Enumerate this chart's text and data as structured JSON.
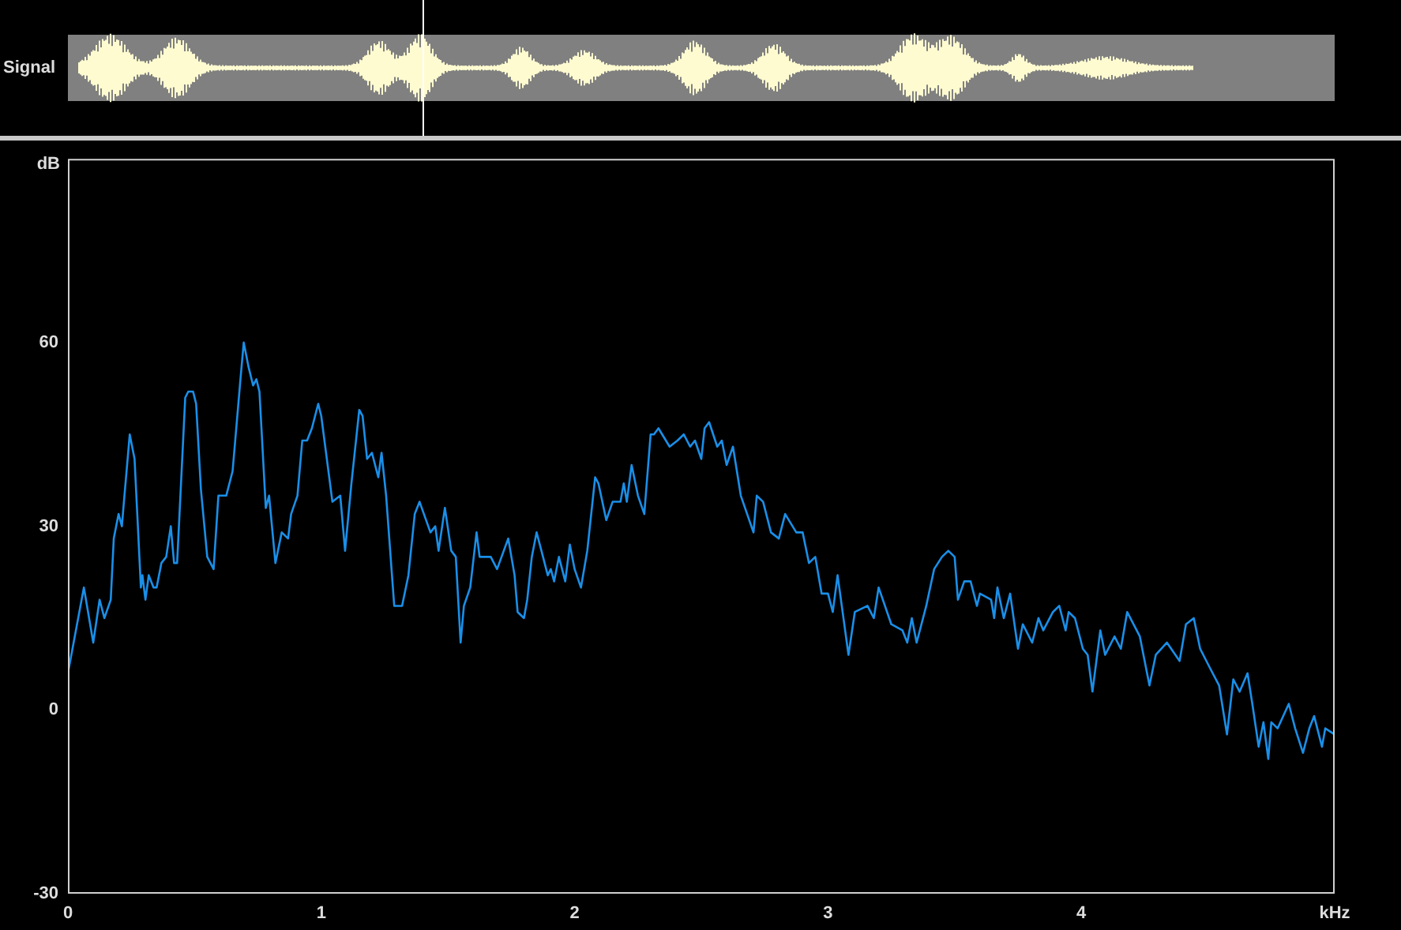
{
  "chart_data": {
    "type": "line",
    "xlabel": "kHz",
    "ylabel": "dB",
    "annotations": [
      "Signal"
    ],
    "xlim": [
      0,
      5
    ],
    "xticks": [
      0,
      1,
      2,
      3,
      4
    ],
    "ylim": [
      -30,
      90
    ],
    "yticks": [
      -30,
      0,
      30,
      60
    ],
    "grid": false,
    "legend": false,
    "marker": "none",
    "line_style": "solid",
    "series": [
      {
        "color": "#1a8fe8",
        "x": [
          0,
          0.063,
          0.1,
          0.125,
          0.144,
          0.169,
          0.181,
          0.2,
          0.213,
          0.219,
          0.244,
          0.263,
          0.288,
          0.294,
          0.306,
          0.319,
          0.338,
          0.35,
          0.369,
          0.388,
          0.406,
          0.419,
          0.431,
          0.463,
          0.475,
          0.494,
          0.506,
          0.525,
          0.55,
          0.575,
          0.594,
          0.625,
          0.65,
          0.681,
          0.694,
          0.713,
          0.731,
          0.744,
          0.756,
          0.781,
          0.794,
          0.819,
          0.844,
          0.869,
          0.881,
          0.906,
          0.925,
          0.944,
          0.963,
          0.988,
          1.0,
          1.044,
          1.075,
          1.094,
          1.119,
          1.15,
          1.163,
          1.181,
          1.2,
          1.225,
          1.238,
          1.256,
          1.288,
          1.319,
          1.344,
          1.369,
          1.388,
          1.431,
          1.45,
          1.463,
          1.488,
          1.513,
          1.531,
          1.55,
          1.563,
          1.588,
          1.613,
          1.625,
          1.669,
          1.694,
          1.738,
          1.763,
          1.775,
          1.8,
          1.813,
          1.831,
          1.85,
          1.869,
          1.894,
          1.906,
          1.919,
          1.938,
          1.963,
          1.981,
          2.0,
          2.025,
          2.05,
          2.081,
          2.094,
          2.125,
          2.15,
          2.181,
          2.194,
          2.206,
          2.225,
          2.25,
          2.275,
          2.3,
          2.313,
          2.331,
          2.375,
          2.406,
          2.431,
          2.456,
          2.475,
          2.5,
          2.513,
          2.531,
          2.563,
          2.581,
          2.6,
          2.625,
          2.656,
          2.706,
          2.719,
          2.744,
          2.775,
          2.806,
          2.831,
          2.875,
          2.9,
          2.925,
          2.95,
          2.975,
          3.0,
          3.019,
          3.038,
          3.081,
          3.106,
          3.156,
          3.181,
          3.2,
          3.25,
          3.294,
          3.313,
          3.331,
          3.35,
          3.388,
          3.419,
          3.45,
          3.475,
          3.5,
          3.513,
          3.538,
          3.563,
          3.588,
          3.6,
          3.644,
          3.656,
          3.669,
          3.694,
          3.719,
          3.75,
          3.769,
          3.806,
          3.831,
          3.85,
          3.888,
          3.913,
          3.938,
          3.95,
          3.975,
          4.006,
          4.025,
          4.044,
          4.075,
          4.094,
          4.131,
          4.156,
          4.181,
          4.206,
          4.231,
          4.269,
          4.294,
          4.338,
          4.388,
          4.413,
          4.444,
          4.469,
          4.506,
          4.544,
          4.575,
          4.6,
          4.625,
          4.656,
          4.675,
          4.7,
          4.719,
          4.738,
          4.75,
          4.775,
          4.819,
          4.844,
          4.875,
          4.9,
          4.919,
          4.95,
          4.963,
          5.0
        ],
        "values": [
          6,
          20,
          11,
          18,
          15,
          18,
          28,
          32,
          30,
          33,
          45,
          41,
          20,
          22,
          18,
          22,
          20,
          20,
          24,
          25,
          30,
          24,
          24,
          51,
          52,
          52,
          50,
          36,
          25,
          23,
          35,
          35,
          39,
          54,
          60,
          56,
          53,
          54,
          52,
          33,
          35,
          24,
          29,
          28,
          32,
          35,
          44,
          44,
          46,
          50,
          48,
          34,
          35,
          26,
          37,
          49,
          48,
          41,
          42,
          38,
          42,
          35,
          17,
          17,
          22,
          32,
          34,
          29,
          30,
          26,
          33,
          26,
          25,
          11,
          17,
          20,
          29,
          25,
          25,
          23,
          28,
          22,
          16,
          15,
          18,
          25,
          29,
          26,
          22,
          23,
          21,
          25,
          21,
          27,
          23,
          20,
          26,
          38,
          37,
          31,
          34,
          34,
          37,
          34,
          40,
          35,
          32,
          45,
          45,
          46,
          43,
          44,
          45,
          43,
          44,
          41,
          46,
          47,
          43,
          44,
          40,
          43,
          35,
          29,
          35,
          34,
          29,
          28,
          32,
          29,
          29,
          24,
          25,
          19,
          19,
          16,
          22,
          9,
          16,
          17,
          15,
          20,
          14,
          13,
          11,
          15,
          11,
          17,
          23,
          25,
          26,
          25,
          18,
          21,
          21,
          17,
          19,
          18,
          15,
          20,
          15,
          19,
          10,
          14,
          11,
          15,
          13,
          16,
          17,
          13,
          16,
          15,
          10,
          9,
          3,
          13,
          9,
          12,
          10,
          16,
          14,
          12,
          4,
          9,
          11,
          8,
          14,
          15,
          10,
          7,
          4,
          -4,
          5,
          3,
          6,
          1,
          -6,
          -2,
          -8,
          -2,
          -3,
          1,
          -3,
          -7,
          -3,
          -1,
          -6,
          -3,
          -4
        ]
      }
    ]
  }
}
